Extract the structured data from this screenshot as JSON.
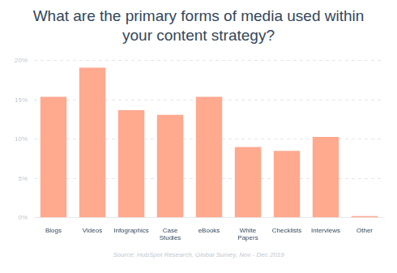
{
  "chart_data": {
    "type": "bar",
    "title": "What are the primary forms of media used within your content strategy?",
    "subtitle": "Source: HubSpot Research, Global Survey, Nov - Dec 2019",
    "categories": [
      "Blogs",
      "Videos",
      "Infographics",
      "Case Studies",
      "eBooks",
      "White Papers",
      "Checklists",
      "Interviews",
      "Other"
    ],
    "values": [
      15.4,
      19.1,
      13.7,
      13.1,
      15.4,
      9.0,
      8.5,
      10.3,
      0.2
    ],
    "color": "#ffa98f",
    "ylim": [
      0,
      20
    ],
    "yticks": [
      {
        "value": 0,
        "label": "0%"
      },
      {
        "value": 5,
        "label": "5%"
      },
      {
        "value": 10,
        "label": "10%"
      },
      {
        "value": 15,
        "label": "15%"
      },
      {
        "value": 20,
        "label": "20%"
      }
    ],
    "grid": true
  }
}
